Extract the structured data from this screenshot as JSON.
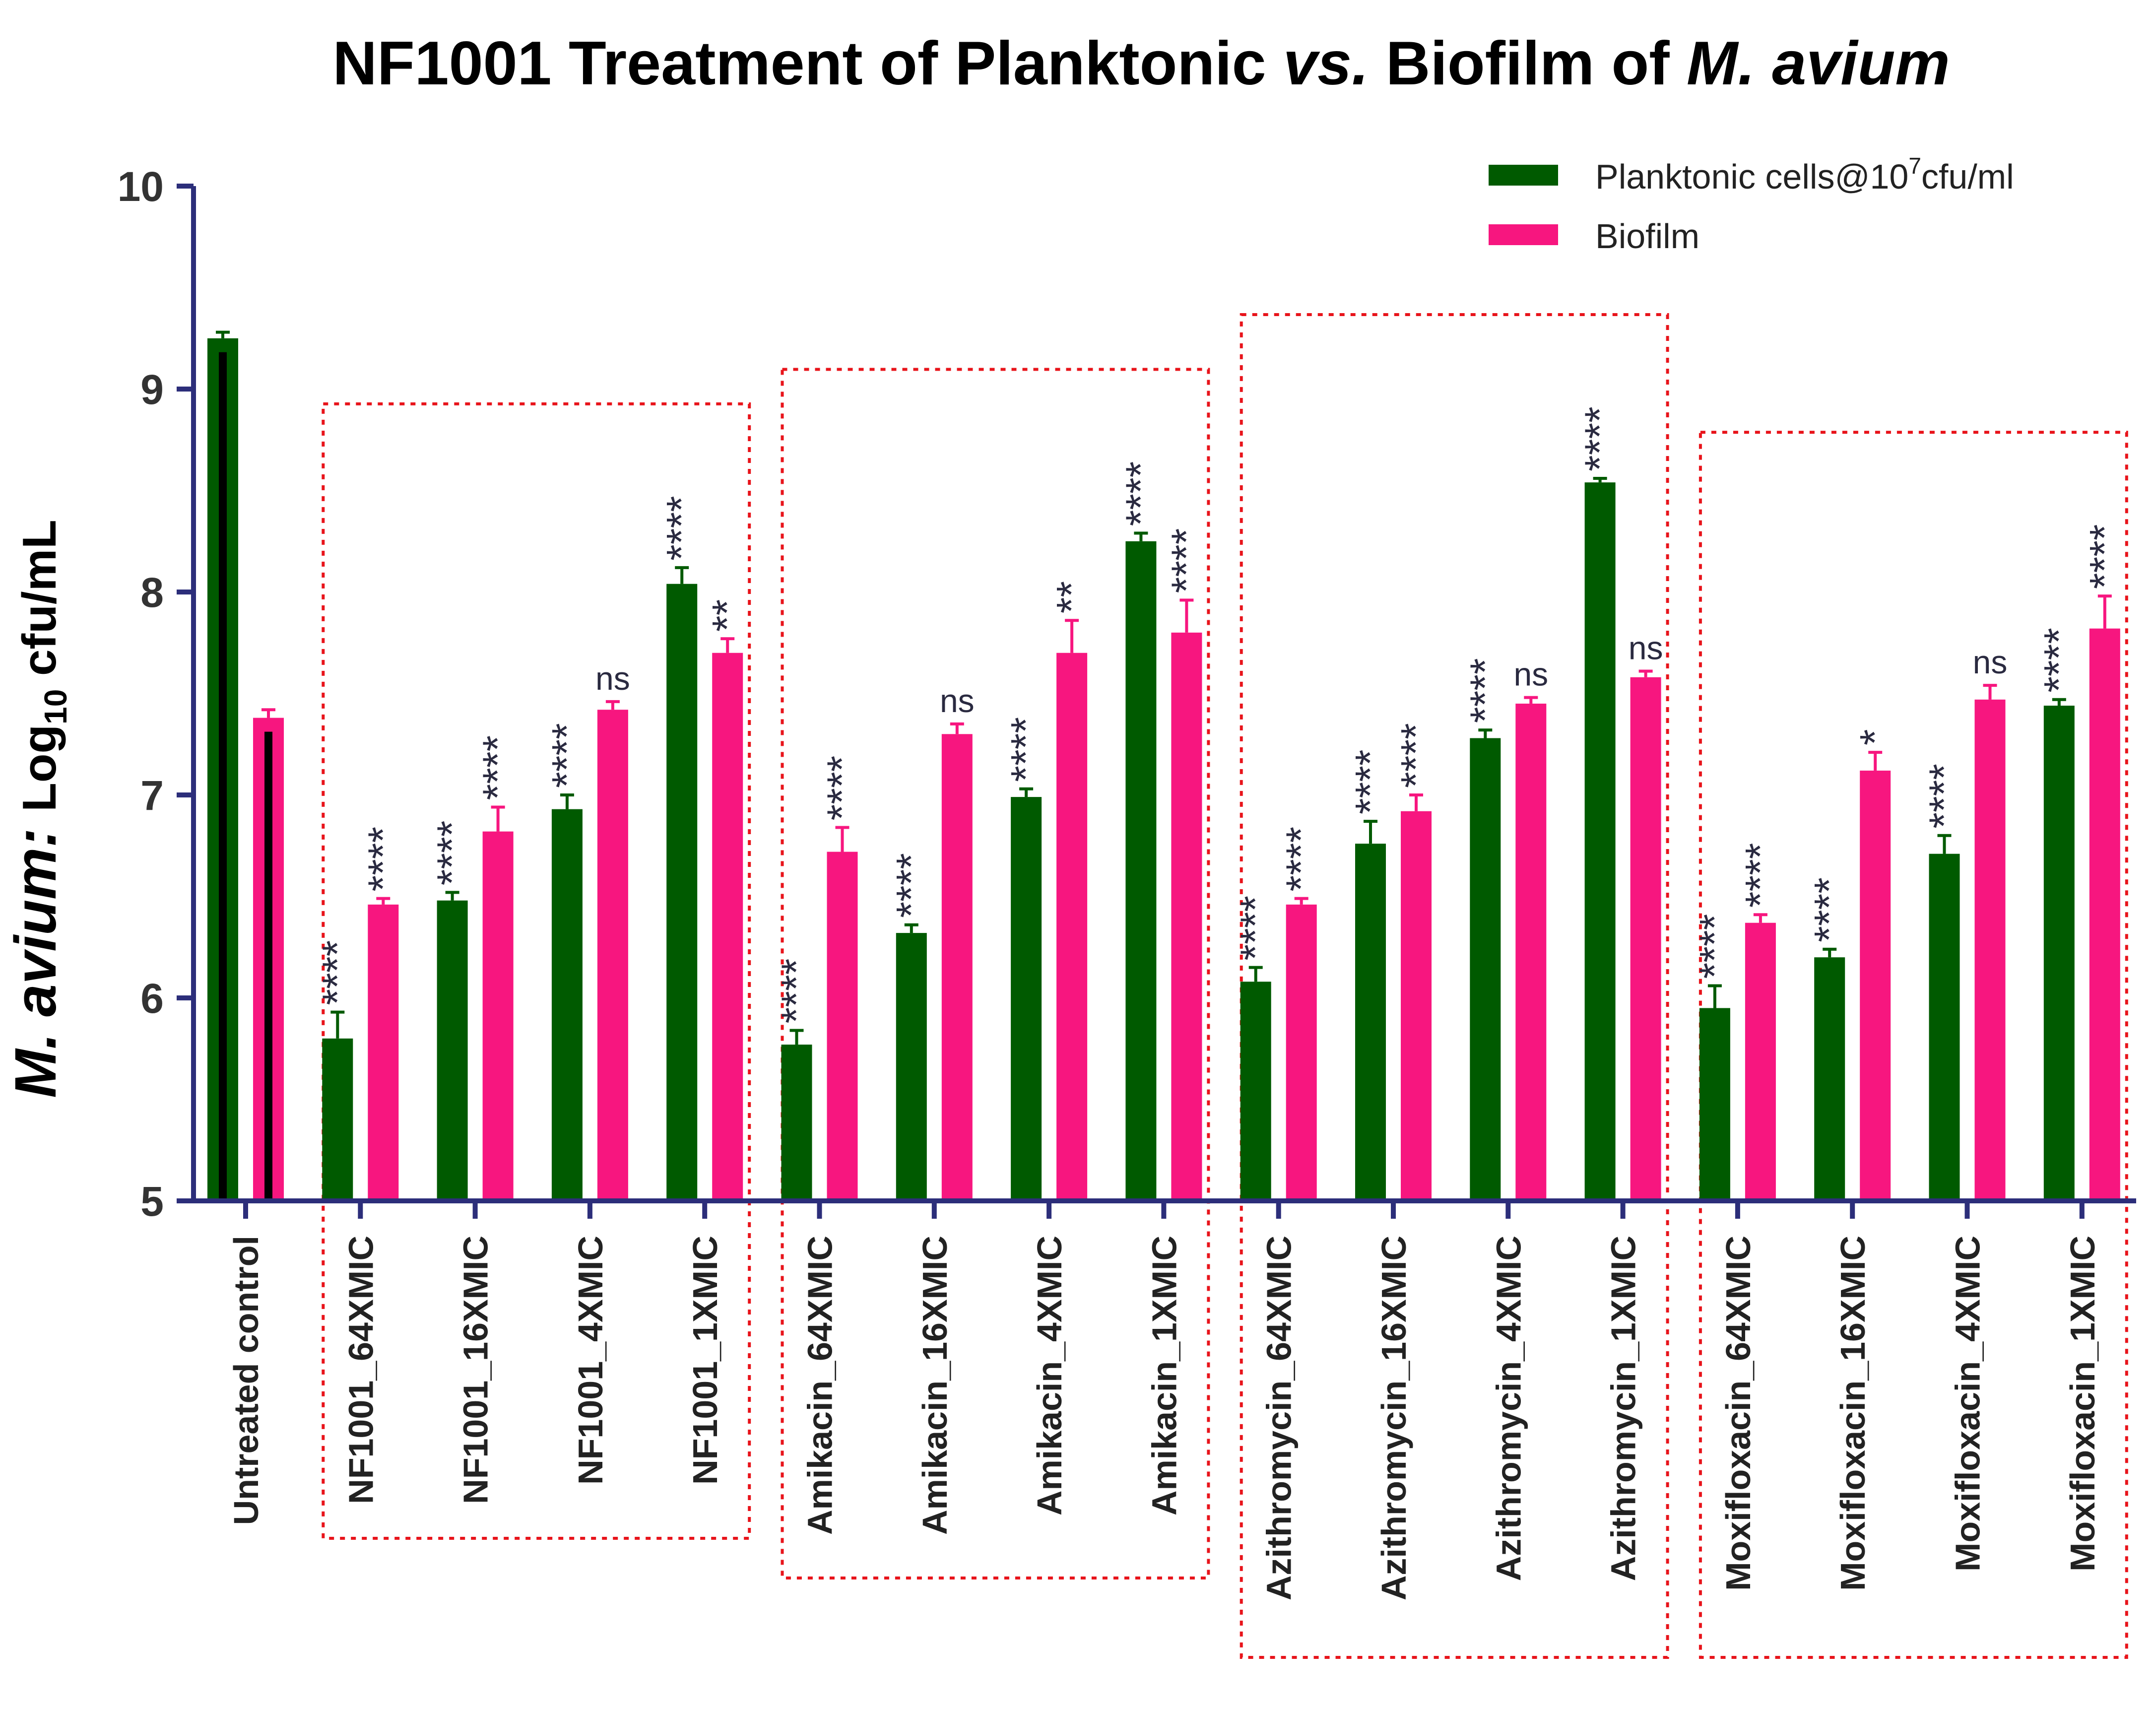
{
  "chart_data": {
    "type": "bar",
    "title": "NF1001 Treatment of Planktonic vs. Biofilm of M. avium",
    "title_parts": [
      {
        "text": "NF1001 Treatment of Planktonic ",
        "italic": false
      },
      {
        "text": "vs.",
        "italic": true
      },
      {
        "text": " Biofilm of ",
        "italic": false
      },
      {
        "text": "M. avium",
        "italic": true
      }
    ],
    "ylabel_parts": {
      "italic": "M. avium:",
      "regular": "Log",
      "sub": "10",
      "tail": "cfu/mL"
    },
    "xlabel": "",
    "ylim": [
      5,
      10
    ],
    "yticks": [
      "5",
      "6",
      "7",
      "8",
      "9",
      "10"
    ],
    "categories": [
      "Untreated control",
      "NF1001_64XMIC",
      "NF1001_16XMIC",
      "NF1001_4XMIC",
      "NF1001_1XMIC",
      "Amikacin_64XMIC",
      "Amikacin_16XMIC",
      "Amikacin_4XMIC",
      "Amikacin_1XMIC",
      "Azithromycin_64XMIC",
      "Azithromycin_16XMIC",
      "Azithromycin_4XMIC",
      "Azithromycin_1XMIC",
      "Moxifloxacin_64XMIC",
      "Moxifloxacin_16XMIC",
      "Moxifloxacin_4XMIC",
      "Moxifloxacin_1XMIC"
    ],
    "series": [
      {
        "name": "Planktonic cells@10^7cfu/ml",
        "legend": {
          "prefix": "Planktonic cells@10",
          "sup": "7",
          "suffix": "cfu/ml"
        },
        "color": "#005a00",
        "values": [
          9.25,
          5.8,
          6.48,
          6.93,
          8.04,
          5.77,
          6.32,
          6.99,
          8.25,
          6.08,
          6.76,
          7.28,
          8.54,
          5.95,
          6.2,
          6.71,
          7.44
        ],
        "errors": [
          0.03,
          0.13,
          0.04,
          0.07,
          0.08,
          0.07,
          0.04,
          0.04,
          0.04,
          0.07,
          0.11,
          0.04,
          0.02,
          0.11,
          0.04,
          0.09,
          0.03
        ],
        "significance": [
          "",
          "****",
          "****",
          "****",
          "****",
          "****",
          "****",
          "****",
          "****",
          "****",
          "****",
          "****",
          "****",
          "****",
          "****",
          "****",
          "****"
        ]
      },
      {
        "name": "Biofilm",
        "legend": {
          "prefix": "Biofilm",
          "sup": "",
          "suffix": ""
        },
        "color": "#f7167f",
        "values": [
          7.38,
          6.46,
          6.82,
          7.42,
          7.7,
          6.72,
          7.3,
          7.7,
          7.8,
          6.46,
          6.92,
          7.45,
          7.58,
          6.37,
          7.12,
          7.47,
          7.82
        ],
        "errors": [
          0.04,
          0.03,
          0.12,
          0.04,
          0.07,
          0.12,
          0.05,
          0.16,
          0.16,
          0.03,
          0.08,
          0.03,
          0.03,
          0.04,
          0.09,
          0.07,
          0.16
        ],
        "significance": [
          "",
          "****",
          "****",
          "ns",
          "**",
          "****",
          "ns",
          "**",
          "****",
          "****",
          "****",
          "ns",
          "ns",
          "****",
          "*",
          "ns",
          "****"
        ]
      }
    ],
    "groups": [
      {
        "name": "NF1001",
        "categories": [
          1,
          2,
          3,
          4
        ]
      },
      {
        "name": "Amikacin",
        "categories": [
          5,
          6,
          7,
          8
        ]
      },
      {
        "name": "Azithromycin",
        "categories": [
          9,
          10,
          11,
          12
        ]
      },
      {
        "name": "Moxifloxacin",
        "categories": [
          13,
          14,
          15,
          16
        ]
      }
    ],
    "legend_position": "top-right",
    "grid": false
  },
  "colors": {
    "axis": "#2c2e7a",
    "group_box": "#e8141b",
    "control_overlay": "#000000"
  }
}
